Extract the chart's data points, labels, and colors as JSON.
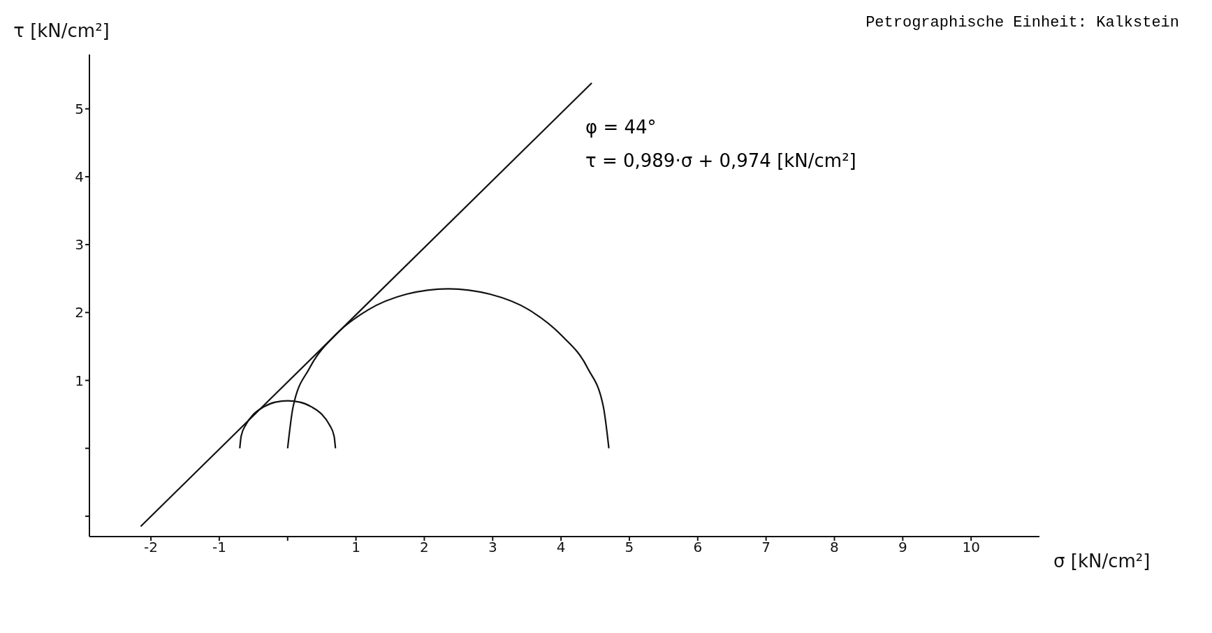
{
  "chart_data": {
    "type": "line",
    "title": "Petrographische Einheit: Kalkstein",
    "xlabel": "σ [kN/cm²]",
    "ylabel": "τ [kN/cm²]",
    "annotations": [
      "φ = 44°",
      "τ = 0,989·σ + 0,974 [kN/cm²]"
    ],
    "xlim": [
      -2.9,
      11
    ],
    "xticks": [
      -2,
      -1,
      {
        "value": 0,
        "label": null
      },
      1,
      2,
      3,
      4,
      5,
      6,
      7,
      8,
      9,
      10
    ],
    "ylim": [
      -1.3,
      5.8
    ],
    "yticks": [
      {
        "value": -1,
        "label": null
      },
      {
        "value": 0,
        "label": null
      },
      1,
      2,
      3,
      4,
      5
    ],
    "marker": "none",
    "line_style": "solid",
    "grid": false,
    "series": [
      {
        "color": "#111111",
        "x": [
          -2.15,
          4.45
        ],
        "values": [
          -1.15,
          5.38
        ]
      },
      {
        "color": "#111111",
        "x": [
          -0.7,
          -0.68,
          -0.61,
          -0.5,
          -0.35,
          -0.18,
          0,
          0.18,
          0.35,
          0.5,
          0.61,
          0.68,
          0.7
        ],
        "values": [
          0,
          0.18,
          0.35,
          0.5,
          0.61,
          0.68,
          0.7,
          0.68,
          0.61,
          0.5,
          0.35,
          0.18,
          0
        ]
      },
      {
        "color": "#111111",
        "x": [
          0,
          0.08,
          0.32,
          0.69,
          1.18,
          1.74,
          2.35,
          2.96,
          3.53,
          4.01,
          4.39,
          4.62,
          4.7
        ],
        "values": [
          0,
          0.61,
          1.18,
          1.66,
          2.04,
          2.27,
          2.35,
          2.27,
          2.04,
          1.66,
          1.18,
          0.61,
          0
        ]
      }
    ]
  }
}
